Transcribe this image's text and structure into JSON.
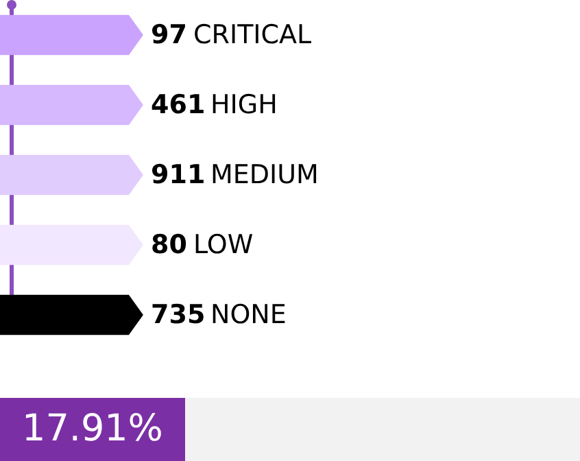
{
  "chart_data": {
    "type": "other",
    "categories": [
      "CRITICAL",
      "HIGH",
      "MEDIUM",
      "LOW",
      "NONE"
    ],
    "values": [
      97,
      461,
      911,
      80,
      735
    ],
    "colors": [
      "#c9a3fd",
      "#d5b8fd",
      "#e0ccfd",
      "#f1e7fe",
      "#000000"
    ],
    "data_labels": true,
    "annotations": [
      "17.91%"
    ]
  }
}
